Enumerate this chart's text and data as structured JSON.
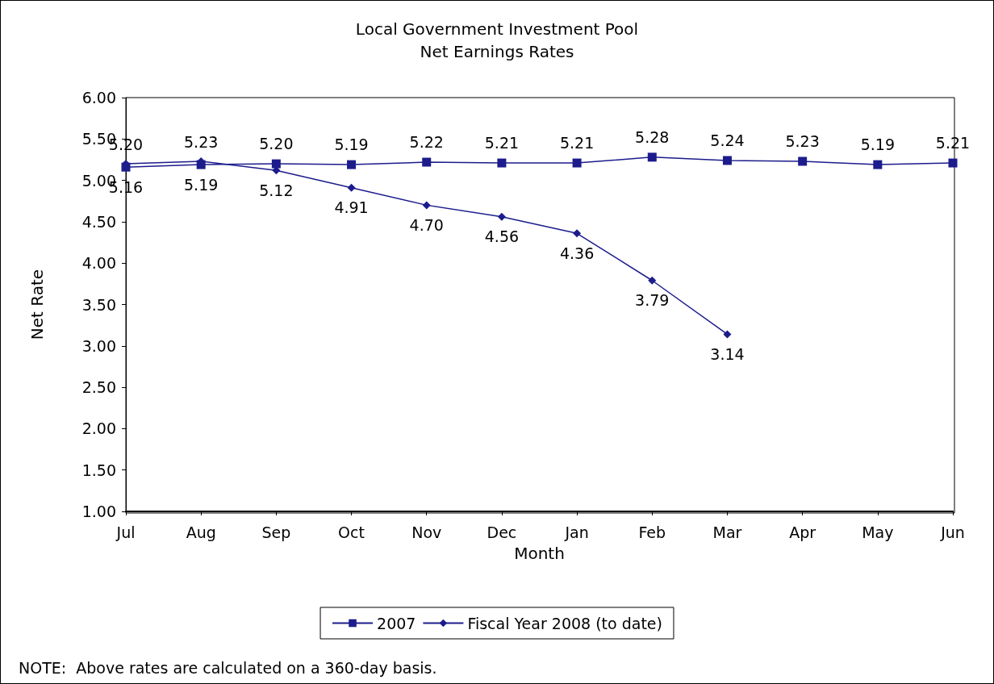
{
  "chart_data": {
    "type": "line",
    "title": "Local Government Investment Pool",
    "subtitle": "Net Earnings Rates",
    "xlabel": "Month",
    "ylabel": "Net Rate",
    "categories": [
      "Jul",
      "Aug",
      "Sep",
      "Oct",
      "Nov",
      "Dec",
      "Jan",
      "Feb",
      "Mar",
      "Apr",
      "May",
      "Jun"
    ],
    "series": [
      {
        "name": "2007",
        "color": "#1c1c8c",
        "marker": "square",
        "values": [
          5.16,
          5.19,
          5.2,
          5.19,
          5.22,
          5.21,
          5.21,
          5.28,
          5.24,
          5.23,
          5.19,
          5.21
        ],
        "value_labels": [
          "5.16",
          "5.19",
          "5.20",
          "5.19",
          "5.22",
          "5.21",
          "5.21",
          "5.28",
          "5.24",
          "5.23",
          "5.19",
          "5.21"
        ]
      },
      {
        "name": "Fiscal Year 2008 (to date)",
        "color": "#1c1c8c",
        "marker": "diamond",
        "values": [
          5.2,
          5.23,
          5.12,
          4.91,
          4.7,
          4.56,
          4.36,
          3.79,
          3.14,
          null,
          null,
          null
        ],
        "value_labels": [
          "5.20",
          "5.23",
          "5.12",
          "4.91",
          "4.70",
          "4.56",
          "4.36",
          "3.79",
          "3.14",
          null,
          null,
          null
        ]
      }
    ],
    "ylim": [
      1,
      6
    ],
    "yticks": [
      {
        "value": 1,
        "label": "1.00"
      },
      {
        "value": 1.5,
        "label": "1.50"
      },
      {
        "value": 2,
        "label": "2.00"
      },
      {
        "value": 2.5,
        "label": "2.50"
      },
      {
        "value": 3,
        "label": "3.00"
      },
      {
        "value": 3.5,
        "label": "3.50"
      },
      {
        "value": 4,
        "label": "4.00"
      },
      {
        "value": 4.5,
        "label": "4.50"
      },
      {
        "value": 5,
        "label": "5.00"
      },
      {
        "value": 5.5,
        "label": "5.50"
      },
      {
        "value": 6,
        "label": "6.00"
      }
    ],
    "grid": false,
    "legend": "bottom",
    "line_style": "solid",
    "annotations": [
      "NOTE:  Above rates are calculated on a 360-day basis."
    ]
  }
}
